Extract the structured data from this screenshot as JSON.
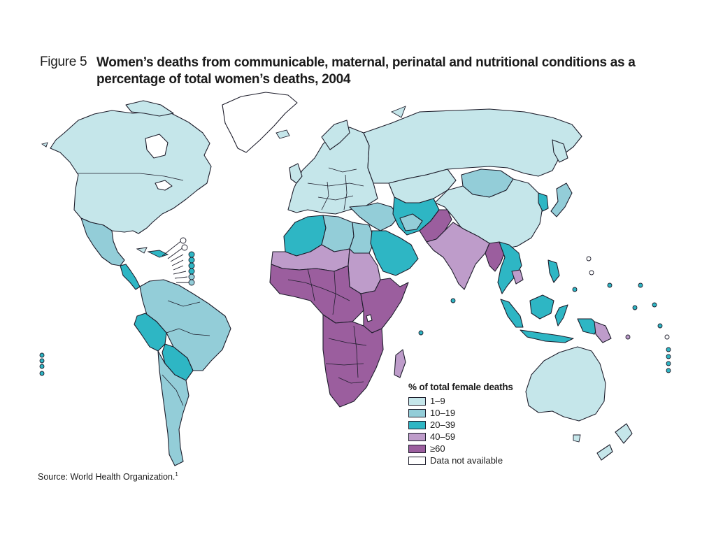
{
  "figure": {
    "label": "Figure 5",
    "title": "Women’s deaths from communicable, maternal, perinatal and nutritional conditions as a percentage of total women’s deaths, 2004"
  },
  "legend": {
    "title": "% of total female deaths",
    "items": [
      {
        "label": "1–9",
        "color": "#c5e6ea"
      },
      {
        "label": "10–19",
        "color": "#93cdd8"
      },
      {
        "label": "20–39",
        "color": "#2eb6c4"
      },
      {
        "label": "40–59",
        "color": "#be9cca"
      },
      {
        "label": "≥60",
        "color": "#9b5e9e"
      },
      {
        "label": "Data not available",
        "color": "#ffffff"
      }
    ]
  },
  "source": {
    "text": "Source: World Health Organization.",
    "note": "1"
  },
  "regions": [
    {
      "name": "North America",
      "category": "1–9"
    },
    {
      "name": "Greenland",
      "category": "Data not available"
    },
    {
      "name": "Mexico",
      "category": "10–19"
    },
    {
      "name": "Central America",
      "category": "20–39"
    },
    {
      "name": "Caribbean",
      "category": "20–39"
    },
    {
      "name": "Northern South America",
      "category": "10–19"
    },
    {
      "name": "Peru",
      "category": "20–39"
    },
    {
      "name": "Bolivia",
      "category": "20–39"
    },
    {
      "name": "Brazil",
      "category": "10–19"
    },
    {
      "name": "Southern South America",
      "category": "10–19"
    },
    {
      "name": "Europe",
      "category": "1–9"
    },
    {
      "name": "Russia",
      "category": "1–9"
    },
    {
      "name": "Central Asia",
      "category": "1–9"
    },
    {
      "name": "Mongolia",
      "category": "10–19"
    },
    {
      "name": "China",
      "category": "1–9"
    },
    {
      "name": "Korea",
      "category": "20–39"
    },
    {
      "name": "Japan",
      "category": "10–19"
    },
    {
      "name": "Turkey and Middle East",
      "category": "10–19"
    },
    {
      "name": "Iran region",
      "category": "20–39"
    },
    {
      "name": "Arabian Peninsula",
      "category": "20–39"
    },
    {
      "name": "Pakistan and Afghanistan",
      "category": "≥60"
    },
    {
      "name": "India",
      "category": "40–59"
    },
    {
      "name": "Myanmar and Bangladesh",
      "category": "≥60"
    },
    {
      "name": "Southeast Asia mainland",
      "category": "20–39"
    },
    {
      "name": "Cambodia",
      "category": "40–59"
    },
    {
      "name": "Malaysia and Indonesia",
      "category": "20–39"
    },
    {
      "name": "Philippines",
      "category": "20–39"
    },
    {
      "name": "Papua New Guinea",
      "category": "40–59"
    },
    {
      "name": "Australia",
      "category": "1–9"
    },
    {
      "name": "New Zealand",
      "category": "1–9"
    },
    {
      "name": "Maghreb",
      "category": "20–39"
    },
    {
      "name": "Libya",
      "category": "10–19"
    },
    {
      "name": "Egypt",
      "category": "10–19"
    },
    {
      "name": "Sahel",
      "category": "40–59"
    },
    {
      "name": "Sudan",
      "category": "40–59"
    },
    {
      "name": "West and Central Africa",
      "category": "≥60"
    },
    {
      "name": "East Africa",
      "category": "≥60"
    },
    {
      "name": "Southern Africa",
      "category": "≥60"
    },
    {
      "name": "Madagascar",
      "category": "40–59"
    }
  ]
}
